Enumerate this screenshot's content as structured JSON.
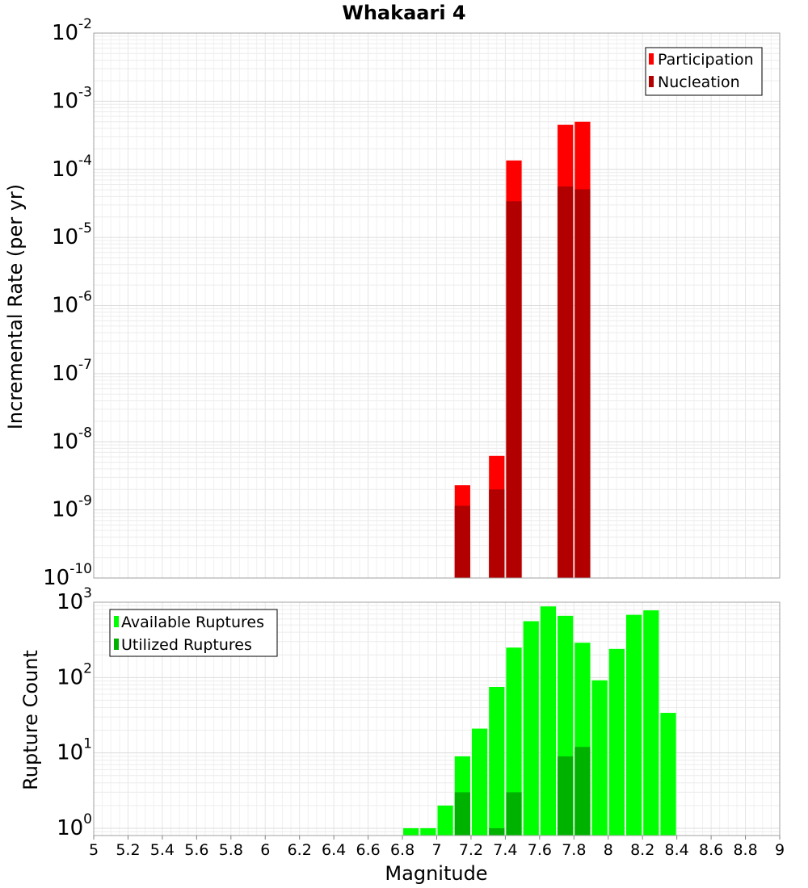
{
  "chart_data": [
    {
      "type": "bar",
      "title": "Whakaari 4",
      "xlabel": "",
      "ylabel": "Incremental Rate (per yr)",
      "yscale": "log",
      "ylim": [
        1e-10,
        0.01
      ],
      "xlim": [
        5,
        9
      ],
      "y_ticks": [
        {
          "base": "10",
          "exp": "-10"
        },
        {
          "base": "10",
          "exp": "-9"
        },
        {
          "base": "10",
          "exp": "-8"
        },
        {
          "base": "10",
          "exp": "-7"
        },
        {
          "base": "10",
          "exp": "-6"
        },
        {
          "base": "10",
          "exp": "-5"
        },
        {
          "base": "10",
          "exp": "-4"
        },
        {
          "base": "10",
          "exp": "-3"
        },
        {
          "base": "10",
          "exp": "-2"
        }
      ],
      "grid": true,
      "legend_position": "top-right",
      "bar_width": 0.1,
      "series": [
        {
          "name": "Participation",
          "color": "#ff0000",
          "x": [
            7.15,
            7.35,
            7.45,
            7.75,
            7.85
          ],
          "values": [
            2.3e-09,
            6.2e-09,
            0.000135,
            0.00045,
            0.0005
          ]
        },
        {
          "name": "Nucleation",
          "color": "#b20000",
          "x": [
            7.15,
            7.35,
            7.45,
            7.75,
            7.85
          ],
          "values": [
            1.15e-09,
            2e-09,
            3.4e-05,
            5.6e-05,
            5.1e-05
          ]
        }
      ]
    },
    {
      "type": "bar",
      "title": "",
      "xlabel": "Magnitude",
      "ylabel": "Rupture Count",
      "yscale": "log",
      "ylim": [
        0.8,
        1000
      ],
      "xlim": [
        5,
        9
      ],
      "y_ticks": [
        {
          "base": "10",
          "exp": "0"
        },
        {
          "base": "10",
          "exp": "1"
        },
        {
          "base": "10",
          "exp": "2"
        },
        {
          "base": "10",
          "exp": "3"
        }
      ],
      "x_ticks": [
        "5",
        "5.2",
        "5.4",
        "5.6",
        "5.8",
        "6",
        "6.2",
        "6.4",
        "6.6",
        "6.8",
        "7",
        "7.2",
        "7.4",
        "7.6",
        "7.8",
        "8",
        "8.2",
        "8.4",
        "8.6",
        "8.8",
        "9"
      ],
      "grid": true,
      "legend_position": "top-left",
      "bar_width": 0.1,
      "series": [
        {
          "name": "Available Ruptures",
          "color": "#00ff00",
          "x": [
            6.85,
            6.95,
            7.05,
            7.15,
            7.25,
            7.35,
            7.45,
            7.55,
            7.65,
            7.75,
            7.85,
            7.95,
            8.05,
            8.15,
            8.25,
            8.35
          ],
          "values": [
            1,
            1,
            2,
            9,
            21,
            75,
            250,
            560,
            880,
            660,
            290,
            92,
            240,
            680,
            780,
            34
          ]
        },
        {
          "name": "Utilized Ruptures",
          "color": "#00b200",
          "x": [
            7.15,
            7.35,
            7.45,
            7.75,
            7.85
          ],
          "values": [
            3,
            1,
            3,
            9,
            12
          ]
        }
      ]
    }
  ]
}
